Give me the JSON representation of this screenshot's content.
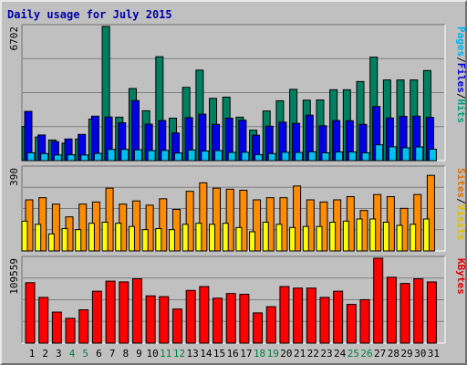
{
  "chart_data": {
    "type": "bar",
    "title": "Daily usage for July 2015",
    "categories": [
      "1",
      "2",
      "3",
      "4",
      "5",
      "6",
      "7",
      "8",
      "9",
      "10",
      "11",
      "12",
      "13",
      "14",
      "15",
      "16",
      "17",
      "18",
      "19",
      "20",
      "21",
      "22",
      "23",
      "24",
      "25",
      "26",
      "27",
      "28",
      "29",
      "30",
      "31"
    ],
    "weekend_days": [
      "4",
      "5",
      "11",
      "12",
      "18",
      "19",
      "25",
      "26"
    ],
    "grid": true,
    "panels": [
      {
        "id": "hits",
        "ymax": 6702,
        "ymax_label": "6702",
        "legend": [
          {
            "text": "Pages",
            "color": "#00b0f0"
          },
          {
            "text": "/",
            "color": "#000000"
          },
          {
            "text": "Files",
            "color": "#0000e0"
          },
          {
            "text": "/",
            "color": "#000000"
          },
          {
            "text": "Hits",
            "color": "#00a080"
          }
        ],
        "series": [
          {
            "name": "Hits",
            "color": "#008060",
            "values": [
              1700,
              1180,
              1030,
              870,
              1080,
              2070,
              6702,
              2170,
              3600,
              2490,
              5190,
              2120,
              3660,
              4520,
              3110,
              3170,
              2170,
              1520,
              2480,
              2990,
              3560,
              3020,
              3030,
              3540,
              3540,
              3950,
              5170,
              4030,
              4030,
              4030,
              4500
            ]
          },
          {
            "name": "Files",
            "color": "#0000e8",
            "values": [
              2460,
              1280,
              950,
              1080,
              1310,
              2220,
              2180,
              1890,
              3000,
              1820,
              2000,
              1380,
              2150,
              2320,
              1810,
              2120,
              2020,
              1270,
              1720,
              1920,
              1860,
              2270,
              1740,
              2000,
              1990,
              1810,
              2700,
              2130,
              2210,
              2220,
              2160
            ]
          },
          {
            "name": "Pages",
            "color": "#00c0f0",
            "values": [
              390,
              350,
              280,
              290,
              280,
              360,
              560,
              560,
              540,
              500,
              510,
              380,
              530,
              480,
              500,
              410,
              420,
              300,
              350,
              420,
              410,
              440,
              390,
              430,
              430,
              390,
              790,
              690,
              640,
              680,
              570
            ]
          }
        ]
      },
      {
        "id": "visits",
        "ymax": 390,
        "ymax_label": "390",
        "legend": [
          {
            "text": "Sites",
            "color": "#e07000"
          },
          {
            "text": "/",
            "color": "#000000"
          },
          {
            "text": "Visits",
            "color": "#e0c000"
          }
        ],
        "series": [
          {
            "name": "Visits",
            "color": "#ff8c00",
            "values": [
              240,
              250,
              220,
              160,
              220,
              230,
              295,
              220,
              235,
              215,
              245,
              195,
              280,
              320,
              295,
              290,
              285,
              240,
              250,
              250,
              305,
              240,
              230,
              240,
              255,
              190,
              265,
              255,
              200,
              265,
              355
            ]
          },
          {
            "name": "Sites",
            "color": "#ffff00",
            "values": [
              140,
              125,
              80,
              105,
              100,
              130,
              135,
              130,
              115,
              100,
              105,
              100,
              125,
              130,
              125,
              130,
              110,
              90,
              135,
              125,
              110,
              115,
              115,
              135,
              140,
              150,
              150,
              135,
              120,
              125,
              150
            ]
          }
        ]
      },
      {
        "id": "kbytes",
        "ymax": 109559,
        "ymax_label": "109559",
        "legend": [
          {
            "text": "KBytes",
            "color": "#e00000"
          }
        ],
        "series": [
          {
            "name": "KBytes",
            "color": "#ff0000",
            "values": [
              78000,
              59000,
              40000,
              32000,
              43000,
              67000,
              80000,
              79000,
              83000,
              61000,
              60000,
              44000,
              68000,
              73000,
              58000,
              64000,
              63000,
              39000,
              47000,
              73000,
              71000,
              71000,
              59000,
              67000,
              50000,
              56000,
              110000,
              85000,
              77000,
              83000,
              79000
            ]
          }
        ]
      }
    ]
  }
}
